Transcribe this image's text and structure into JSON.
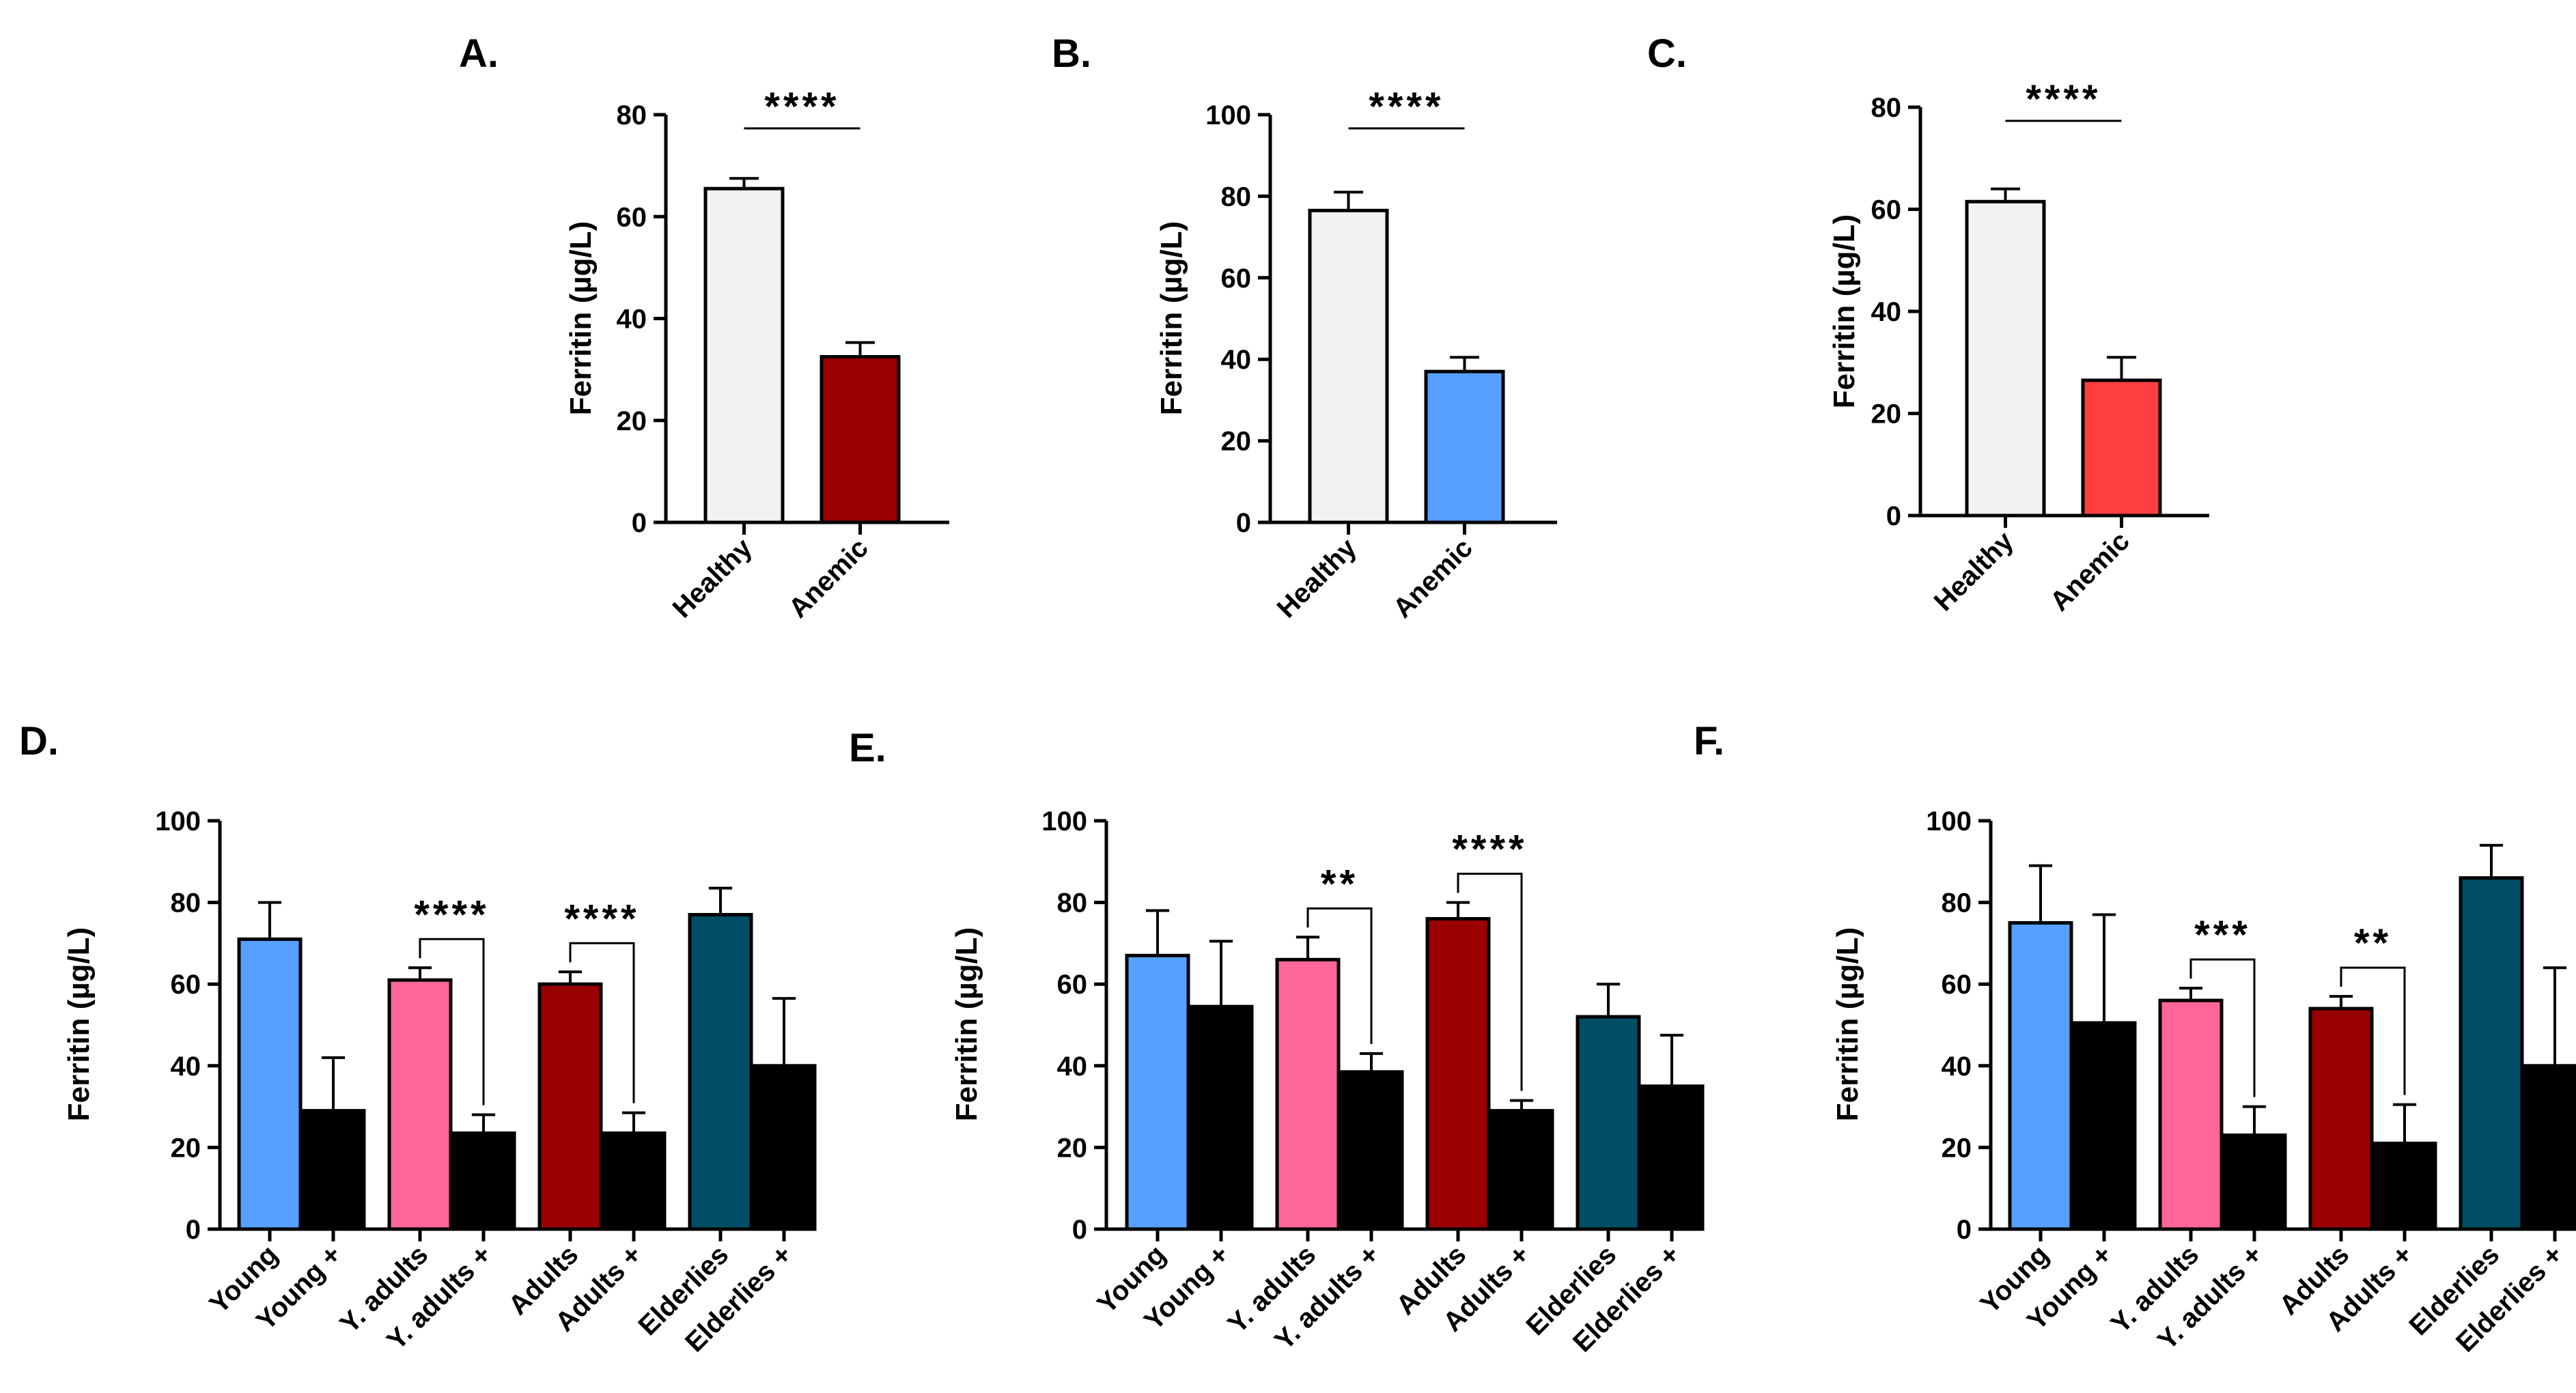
{
  "figure": {
    "panels": [
      {
        "letter": "A."
      },
      {
        "letter": "B."
      },
      {
        "letter": "C."
      },
      {
        "letter": "D."
      },
      {
        "letter": "E."
      },
      {
        "letter": "F."
      }
    ]
  },
  "chart_data": [
    {
      "type": "bar",
      "panel": "A.",
      "ylabel": "Ferritin (µg/L)",
      "ylim": [
        0,
        80
      ],
      "yticks": [
        0,
        20,
        40,
        60,
        80
      ],
      "categories": [
        "Healthy",
        "Anemic"
      ],
      "values": [
        65.5,
        32.5
      ],
      "errors": [
        2.0,
        2.8
      ],
      "colors": [
        "#f2f2f2",
        "#9a0000"
      ],
      "significance": [
        {
          "from": 0,
          "to": 1,
          "label": "****",
          "style": "line"
        }
      ]
    },
    {
      "type": "bar",
      "panel": "B.",
      "ylabel": "Ferritin (µg/L)",
      "ylim": [
        0,
        100
      ],
      "yticks": [
        0,
        20,
        40,
        60,
        80,
        100
      ],
      "categories": [
        "Healthy",
        "Anemic"
      ],
      "values": [
        76.5,
        37
      ],
      "errors": [
        4.5,
        3.5
      ],
      "colors": [
        "#f2f2f2",
        "#56a0ff"
      ],
      "significance": [
        {
          "from": 0,
          "to": 1,
          "label": "****",
          "style": "line"
        }
      ]
    },
    {
      "type": "bar",
      "panel": "C.",
      "ylabel": "Ferritin (µg/L)",
      "ylim": [
        0,
        80
      ],
      "yticks": [
        0,
        20,
        40,
        60,
        80
      ],
      "categories": [
        "Healthy",
        "Anemic"
      ],
      "values": [
        61.5,
        26.5
      ],
      "errors": [
        2.5,
        4.5
      ],
      "colors": [
        "#f2f2f2",
        "#ff3f3f"
      ],
      "significance": [
        {
          "from": 0,
          "to": 1,
          "label": "****",
          "style": "line"
        }
      ]
    },
    {
      "type": "bar",
      "panel": "D.",
      "ylabel": "Ferritin (µg/L)",
      "ylim": [
        0,
        100
      ],
      "yticks": [
        0,
        20,
        40,
        60,
        80,
        100
      ],
      "categories": [
        "Young",
        "Young +",
        "Y. adults",
        "Y. adults +",
        "Adults",
        "Adults +",
        "Elderlies",
        "Elderlies +"
      ],
      "values": [
        71,
        29,
        61,
        23.5,
        60,
        23.5,
        77,
        40
      ],
      "errors": [
        9,
        13,
        3,
        4.5,
        3,
        5,
        6.5,
        16.5
      ],
      "colors": [
        "#56a0ff",
        "#000000",
        "#ff6699",
        "#000000",
        "#9a0000",
        "#000000",
        "#004d66",
        "#000000"
      ],
      "significance": [
        {
          "from": 2,
          "to": 3,
          "label": "****",
          "style": "bracket"
        },
        {
          "from": 4,
          "to": 5,
          "label": "****",
          "style": "bracket"
        }
      ]
    },
    {
      "type": "bar",
      "panel": "E.",
      "ylabel": "Ferritin (µg/L)",
      "ylim": [
        0,
        100
      ],
      "yticks": [
        0,
        20,
        40,
        60,
        80,
        100
      ],
      "categories": [
        "Young",
        "Young +",
        "Y. adults",
        "Y. adults +",
        "Adults",
        "Adults +",
        "Elderlies",
        "Elderlies +"
      ],
      "values": [
        67,
        54.5,
        66,
        38.5,
        76,
        29,
        52,
        35
      ],
      "errors": [
        11,
        16,
        5.5,
        4.5,
        4,
        2.5,
        8,
        12.5
      ],
      "colors": [
        "#56a0ff",
        "#000000",
        "#ff6699",
        "#000000",
        "#9a0000",
        "#000000",
        "#004d66",
        "#000000"
      ],
      "significance": [
        {
          "from": 2,
          "to": 3,
          "label": "**",
          "style": "bracket"
        },
        {
          "from": 4,
          "to": 5,
          "label": "****",
          "style": "bracket"
        }
      ]
    },
    {
      "type": "bar",
      "panel": "F.",
      "ylabel": "Ferritin (µg/L)",
      "ylim": [
        0,
        100
      ],
      "yticks": [
        0,
        20,
        40,
        60,
        80,
        100
      ],
      "categories": [
        "Young",
        "Young +",
        "Y. adults",
        "Y. adults +",
        "Adults",
        "Adults +",
        "Elderlies",
        "Elderlies +"
      ],
      "values": [
        75,
        50.5,
        56,
        23,
        54,
        21,
        86,
        40
      ],
      "errors": [
        14,
        26.5,
        3,
        7,
        3,
        9.5,
        8,
        24
      ],
      "colors": [
        "#56a0ff",
        "#000000",
        "#ff6699",
        "#000000",
        "#9a0000",
        "#000000",
        "#004d66",
        "#000000"
      ],
      "significance": [
        {
          "from": 2,
          "to": 3,
          "label": "***",
          "style": "bracket"
        },
        {
          "from": 4,
          "to": 5,
          "label": "**",
          "style": "bracket"
        }
      ]
    }
  ]
}
